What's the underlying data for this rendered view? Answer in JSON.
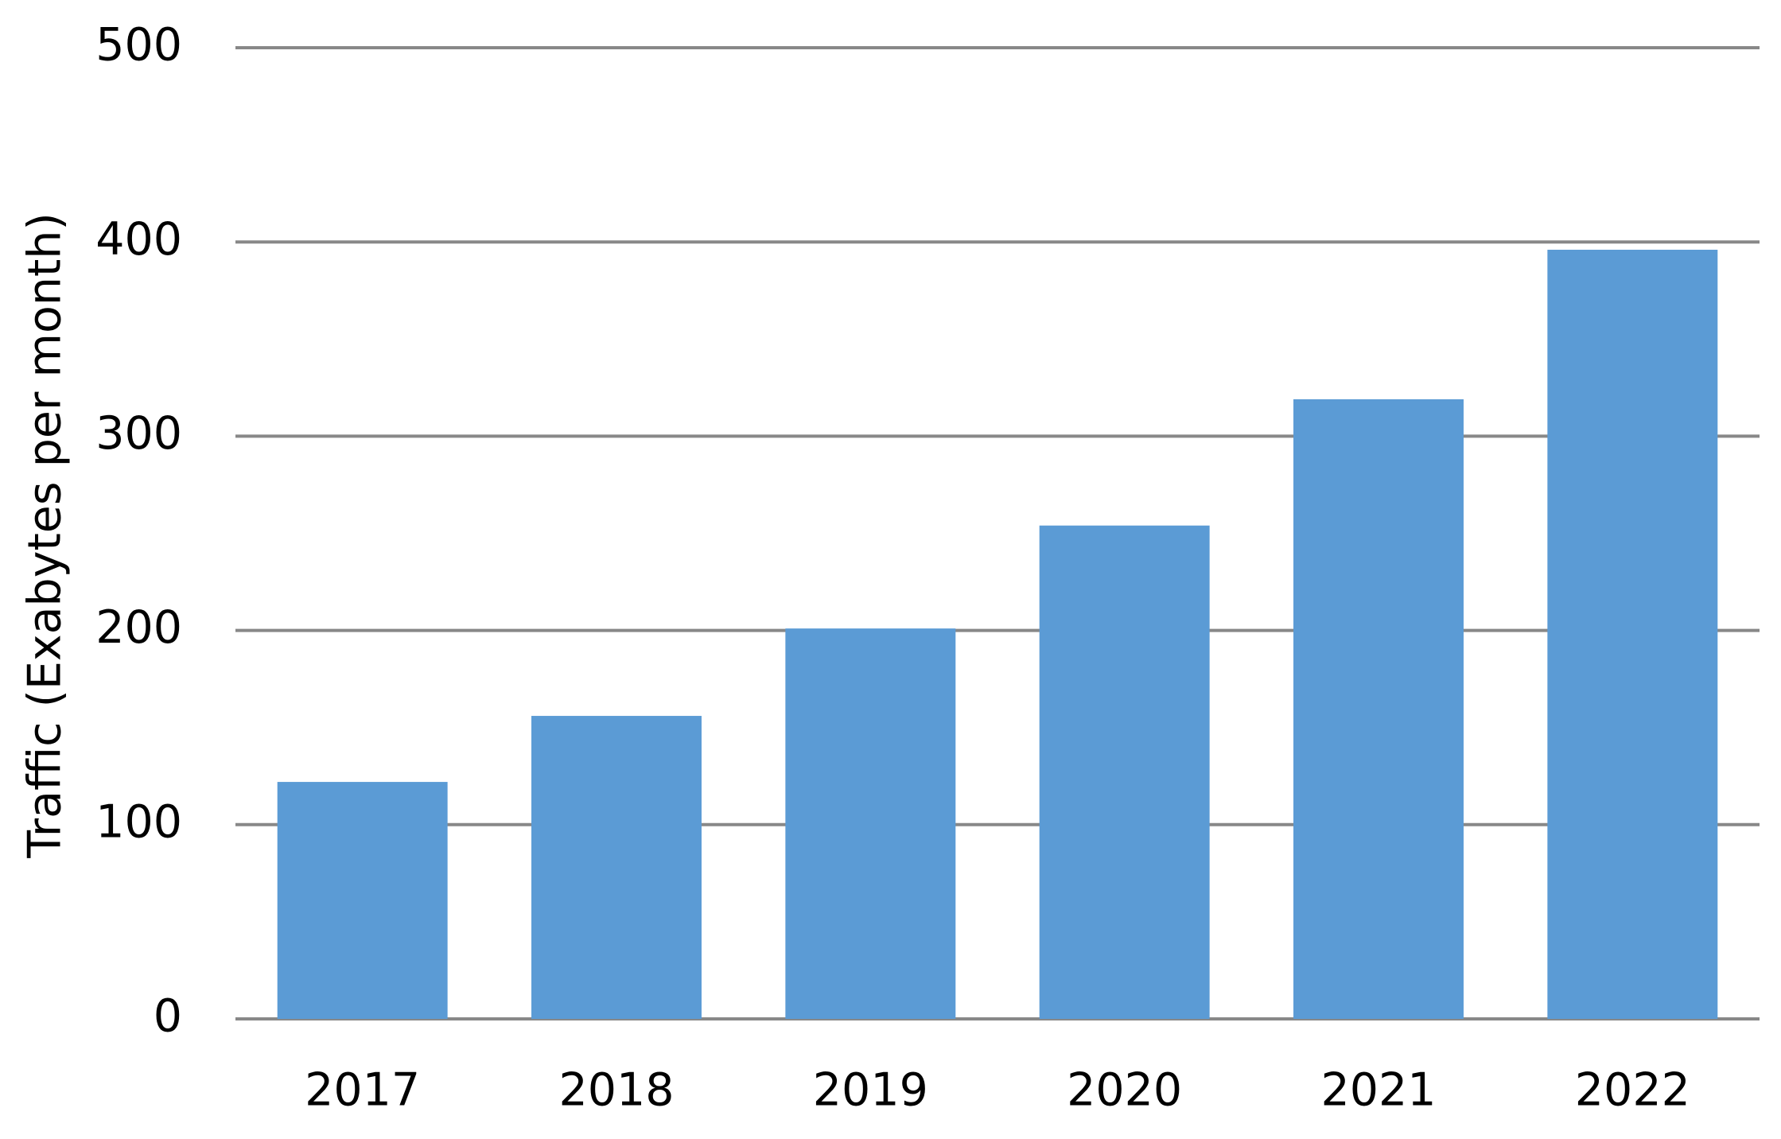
{
  "chart_data": {
    "type": "bar",
    "y_label": "Traffic (Exabytes per month)",
    "categories": [
      "2017",
      "2018",
      "2019",
      "2020",
      "2021",
      "2022"
    ],
    "values": [
      122,
      156,
      201,
      254,
      319,
      396
    ],
    "color": "#5b9bd5",
    "ylim": [
      0,
      500
    ],
    "yticks": [
      0,
      100,
      200,
      300,
      400,
      500
    ],
    "grid": true
  }
}
